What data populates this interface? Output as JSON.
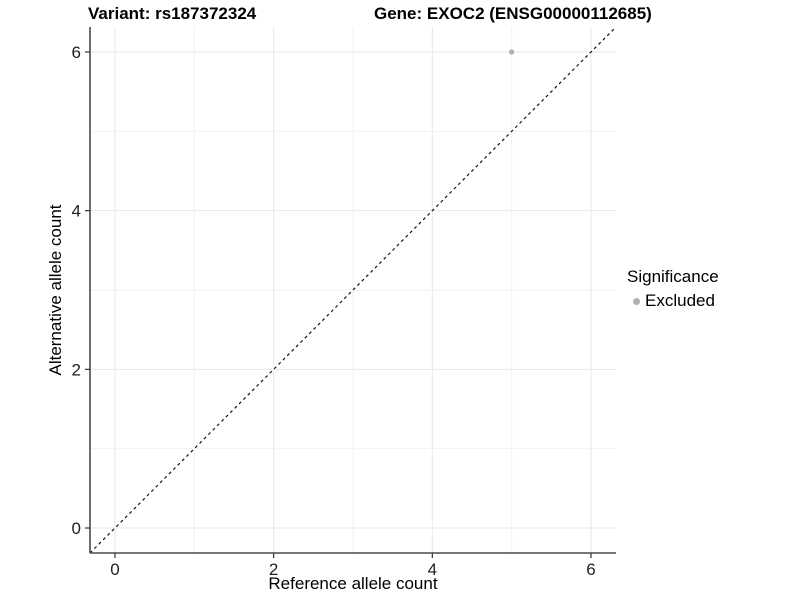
{
  "chart_data": {
    "type": "scatter",
    "title_left": "Variant: rs187372324",
    "title_right": "Gene: EXOC2 (ENSG00000112685)",
    "xlabel": "Reference allele count",
    "ylabel": "Alternative allele count",
    "xlim": [
      -0.315,
      6.315
    ],
    "ylim": [
      -0.315,
      6.315
    ],
    "xticks": [
      0,
      2,
      4,
      6
    ],
    "yticks": [
      0,
      2,
      4,
      6
    ],
    "xticks_minor": [
      1,
      3,
      5
    ],
    "yticks_minor": [
      1,
      3,
      5
    ],
    "grid": "major+minor",
    "reference_line": {
      "type": "identity",
      "slope": 1,
      "intercept": 0,
      "style": "dashed",
      "color": "#111111"
    },
    "series": [
      {
        "name": "Excluded",
        "color": "#b0b0b0",
        "points": [
          {
            "x": 5,
            "y": 6
          }
        ]
      }
    ],
    "legend": {
      "title": "Significance",
      "position": "right",
      "items": [
        {
          "label": "Excluded",
          "color": "#b0b0b0",
          "marker": "circle"
        }
      ]
    },
    "colors": {
      "background": "#ffffff",
      "grid_major": "#e7e7e7",
      "grid_minor": "#f2f2f2",
      "axis_line": "#4a4a4a",
      "tick_mark": "#333333",
      "tick_label": "#1f1f1f"
    }
  }
}
